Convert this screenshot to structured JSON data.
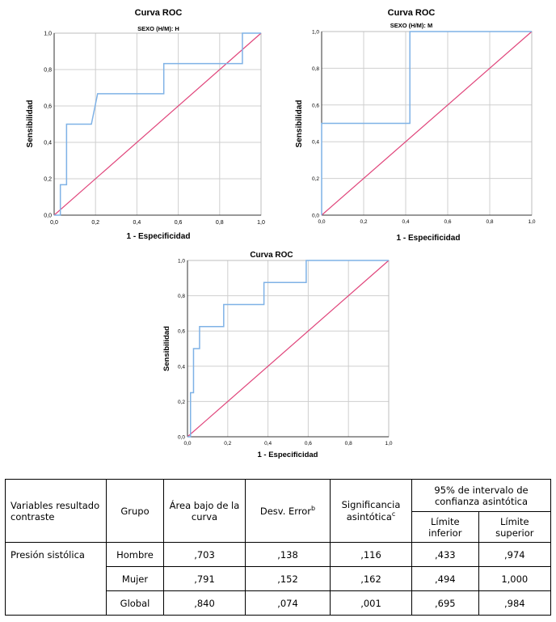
{
  "charts_text": {
    "roc_title": "Curva ROC",
    "y_label": "Sensibilidad",
    "x_label": "1 - Especificidad",
    "sub_h": "SEXO (H/M): H",
    "sub_m": "SEXO (H/M): M",
    "ticks": [
      "0,0",
      "0,2",
      "0,4",
      "0,6",
      "0,8",
      "1,0"
    ]
  },
  "colors": {
    "roc_line": "#7FB2E6",
    "reference_line": "#E0457B",
    "grid": "#CFCFCF"
  },
  "chart_data": [
    {
      "type": "line",
      "title": "Curva ROC",
      "subtitle": "SEXO (H/M): H",
      "xlabel": "1 - Especificidad",
      "ylabel": "Sensibilidad",
      "xlim": [
        0,
        1
      ],
      "ylim": [
        0,
        1
      ],
      "grid": true,
      "series": [
        {
          "x": [
            0,
            0.03,
            0.03,
            0.06,
            0.06,
            0.18,
            0.21,
            0.21,
            0.53,
            0.53,
            0.91,
            0.91,
            1.0
          ],
          "y": [
            0,
            0,
            0.167,
            0.167,
            0.5,
            0.5,
            0.667,
            0.667,
            0.667,
            0.833,
            0.833,
            1.0,
            1.0
          ]
        },
        {
          "x": [
            0,
            1
          ],
          "y": [
            0,
            1
          ]
        }
      ]
    },
    {
      "type": "line",
      "title": "Curva ROC",
      "subtitle": "SEXO (H/M): M",
      "xlabel": "1 - Especificidad",
      "ylabel": "Sensibilidad",
      "xlim": [
        0,
        1
      ],
      "ylim": [
        0,
        1
      ],
      "grid": true,
      "series": [
        {
          "x": [
            0,
            0,
            0.42,
            0.42,
            1.0
          ],
          "y": [
            0,
            0.5,
            0.5,
            1.0,
            1.0
          ]
        },
        {
          "x": [
            0,
            1
          ],
          "y": [
            0,
            1
          ]
        }
      ]
    },
    {
      "type": "line",
      "title": "Curva ROC",
      "xlabel": "1 - Especificidad",
      "ylabel": "Sensibilidad",
      "xlim": [
        0,
        1
      ],
      "ylim": [
        0,
        1
      ],
      "grid": true,
      "series": [
        {
          "x": [
            0,
            0.015,
            0.015,
            0.03,
            0.03,
            0.06,
            0.06,
            0.07,
            0.07,
            0.18,
            0.18,
            0.38,
            0.38,
            0.59,
            0.59,
            1.0
          ],
          "y": [
            0,
            0,
            0.25,
            0.25,
            0.5,
            0.5,
            0.625,
            0.625,
            0.625,
            0.625,
            0.75,
            0.75,
            0.875,
            0.875,
            1.0,
            1.0
          ]
        },
        {
          "x": [
            0,
            1
          ],
          "y": [
            0,
            1
          ]
        }
      ]
    }
  ],
  "table": {
    "header": {
      "var": "Variables resultado contraste",
      "grupo": "Grupo",
      "area": "Área bajo de la curva",
      "desv": "Desv. Error",
      "desv_sup": "b",
      "sig": "Significancia asintótica",
      "sig_sup": "c",
      "ci": "95% de intervalo de confianza asintótica",
      "lower": "Límite inferior",
      "upper": "Límite superior"
    },
    "variable": "Presión sistólica",
    "rows": [
      {
        "grupo": "Hombre",
        "area": ",703",
        "desv": ",138",
        "sig": ",116",
        "lower": ",433",
        "upper": ",974"
      },
      {
        "grupo": "Mujer",
        "area": ",791",
        "desv": ",152",
        "sig": ",162",
        "lower": ",494",
        "upper": "1,000"
      },
      {
        "grupo": "Global",
        "area": ",840",
        "desv": ",074",
        "sig": ",001",
        "lower": ",695",
        "upper": ",984"
      }
    ]
  }
}
